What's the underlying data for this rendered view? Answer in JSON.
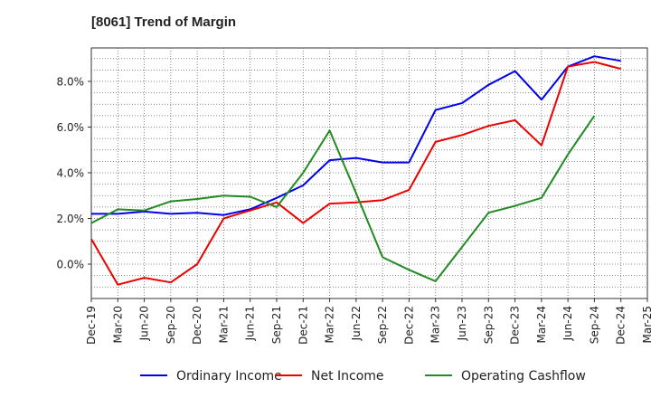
{
  "title": "[8061]  Trend of Margin",
  "chart_data": {
    "type": "line",
    "title": "[8061]  Trend of Margin",
    "xlabel": "",
    "ylabel": "",
    "categories": [
      "Dec-19",
      "Mar-20",
      "Jun-20",
      "Sep-20",
      "Dec-20",
      "Mar-21",
      "Jun-21",
      "Sep-21",
      "Dec-21",
      "Mar-22",
      "Jun-22",
      "Sep-22",
      "Dec-22",
      "Mar-23",
      "Jun-23",
      "Sep-23",
      "Dec-23",
      "Mar-24",
      "Jun-24",
      "Sep-24",
      "Dec-24",
      "Mar-25"
    ],
    "y_ticks": [
      "0.0%",
      "2.0%",
      "4.0%",
      "6.0%",
      "8.0%"
    ],
    "y_tick_values": [
      0,
      2,
      4,
      6,
      8
    ],
    "ylim": [
      -1.5,
      9.5
    ],
    "grid": true,
    "legend_position": "bottom",
    "series": [
      {
        "name": "Ordinary Income",
        "color": "#0000ee",
        "values": [
          2.2,
          2.2,
          2.3,
          2.2,
          2.25,
          2.15,
          2.4,
          2.9,
          3.45,
          4.55,
          4.65,
          4.45,
          4.45,
          6.75,
          7.05,
          7.85,
          8.45,
          7.2,
          8.65,
          9.1,
          8.9,
          null
        ]
      },
      {
        "name": "Net Income",
        "color": "#ee0000",
        "values": [
          1.1,
          -0.9,
          -0.6,
          -0.8,
          0.0,
          2.0,
          2.35,
          2.7,
          1.8,
          2.65,
          2.7,
          2.8,
          3.25,
          5.35,
          5.65,
          6.05,
          6.3,
          5.2,
          8.65,
          8.85,
          8.55,
          null
        ]
      },
      {
        "name": "Operating Cashflow",
        "color": "#228b22",
        "values": [
          1.8,
          2.4,
          2.35,
          2.75,
          2.85,
          3.0,
          2.95,
          2.5,
          4.0,
          5.85,
          3.1,
          0.3,
          -0.25,
          -0.75,
          0.75,
          2.25,
          2.55,
          2.9,
          4.8,
          6.5,
          null,
          null
        ]
      }
    ]
  }
}
